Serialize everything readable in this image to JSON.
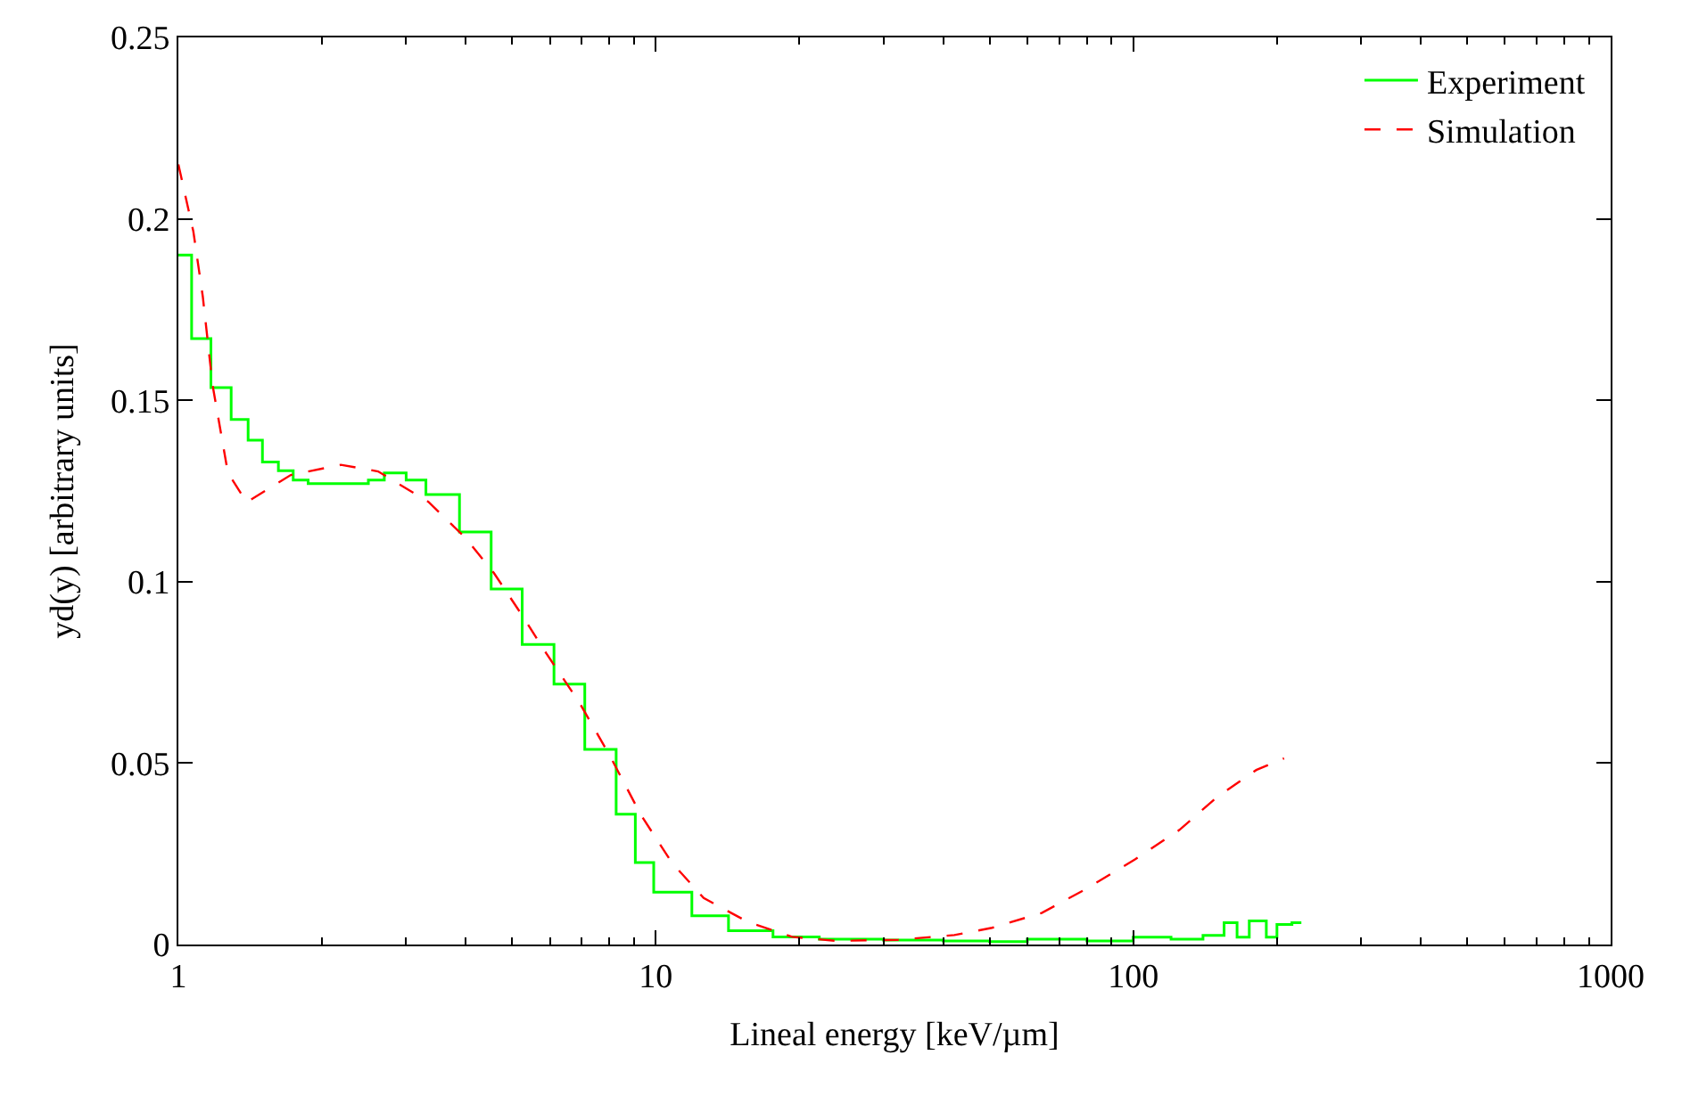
{
  "chart_data": {
    "type": "line",
    "xlabel": "Lineal energy [keV/µm]",
    "ylabel": "yd(y) [arbitrary units]",
    "log": "x",
    "xlim": [
      1,
      1000
    ],
    "xticks": [
      1,
      10,
      100,
      1000
    ],
    "ylim": [
      0,
      0.25
    ],
    "yticks": [
      0,
      0.05,
      0.1,
      0.15,
      0.2,
      0.25
    ],
    "grid": false,
    "legend": "top right",
    "marker": "none",
    "series": [
      {
        "name": "Experiment",
        "type": "step",
        "color": "#00ff00",
        "line_style": "solid",
        "x": [
          1,
          1.066,
          1.17,
          1.29,
          1.4,
          1.5,
          1.62,
          1.74,
          1.87,
          2.2,
          2.5,
          2.7,
          3.0,
          3.3,
          3.88,
          4.52,
          5.25,
          6.12,
          7.1,
          8.26,
          9.06,
          9.9,
          11.9,
          14.2,
          17.6,
          22,
          30,
          40,
          50,
          60,
          80,
          100,
          120,
          140,
          155,
          165,
          175,
          190,
          200,
          215,
          225
        ],
        "values": [
          0.19,
          0.167,
          0.1535,
          0.1447,
          0.139,
          0.133,
          0.1306,
          0.128,
          0.127,
          0.127,
          0.128,
          0.13,
          0.128,
          0.124,
          0.1137,
          0.098,
          0.0827,
          0.0718,
          0.0538,
          0.0359,
          0.0226,
          0.0144,
          0.0079,
          0.0038,
          0.0021,
          0.0015,
          0.0012,
          0.001,
          0.0008,
          0.0015,
          0.001,
          0.002,
          0.0015,
          0.0025,
          0.006,
          0.002,
          0.0065,
          0.002,
          0.0055,
          0.006,
          0.006
        ]
      },
      {
        "name": "Simulation",
        "type": "line",
        "color": "#ff0000",
        "line_style": "dashed",
        "x": [
          1,
          1.075,
          1.125,
          1.18,
          1.27,
          1.39,
          1.72,
          2.19,
          2.62,
          3.34,
          4.0,
          4.58,
          5.25,
          5.9,
          6.9,
          8.0,
          9.3,
          10.8,
          12.6,
          15.6,
          19.3,
          23.8,
          32.2,
          42.2,
          50.6,
          64.3,
          79.6,
          101,
          125,
          150,
          181,
          207
        ],
        "values": [
          0.215,
          0.1965,
          0.1786,
          0.154,
          0.13,
          0.1219,
          0.1294,
          0.1322,
          0.1304,
          0.122,
          0.112,
          0.1024,
          0.0907,
          0.0802,
          0.0669,
          0.0522,
          0.0358,
          0.0226,
          0.0128,
          0.0062,
          0.0021,
          0.001,
          0.0013,
          0.0026,
          0.0046,
          0.0087,
          0.0153,
          0.0235,
          0.0316,
          0.0407,
          0.0481,
          0.0513
        ]
      }
    ]
  }
}
